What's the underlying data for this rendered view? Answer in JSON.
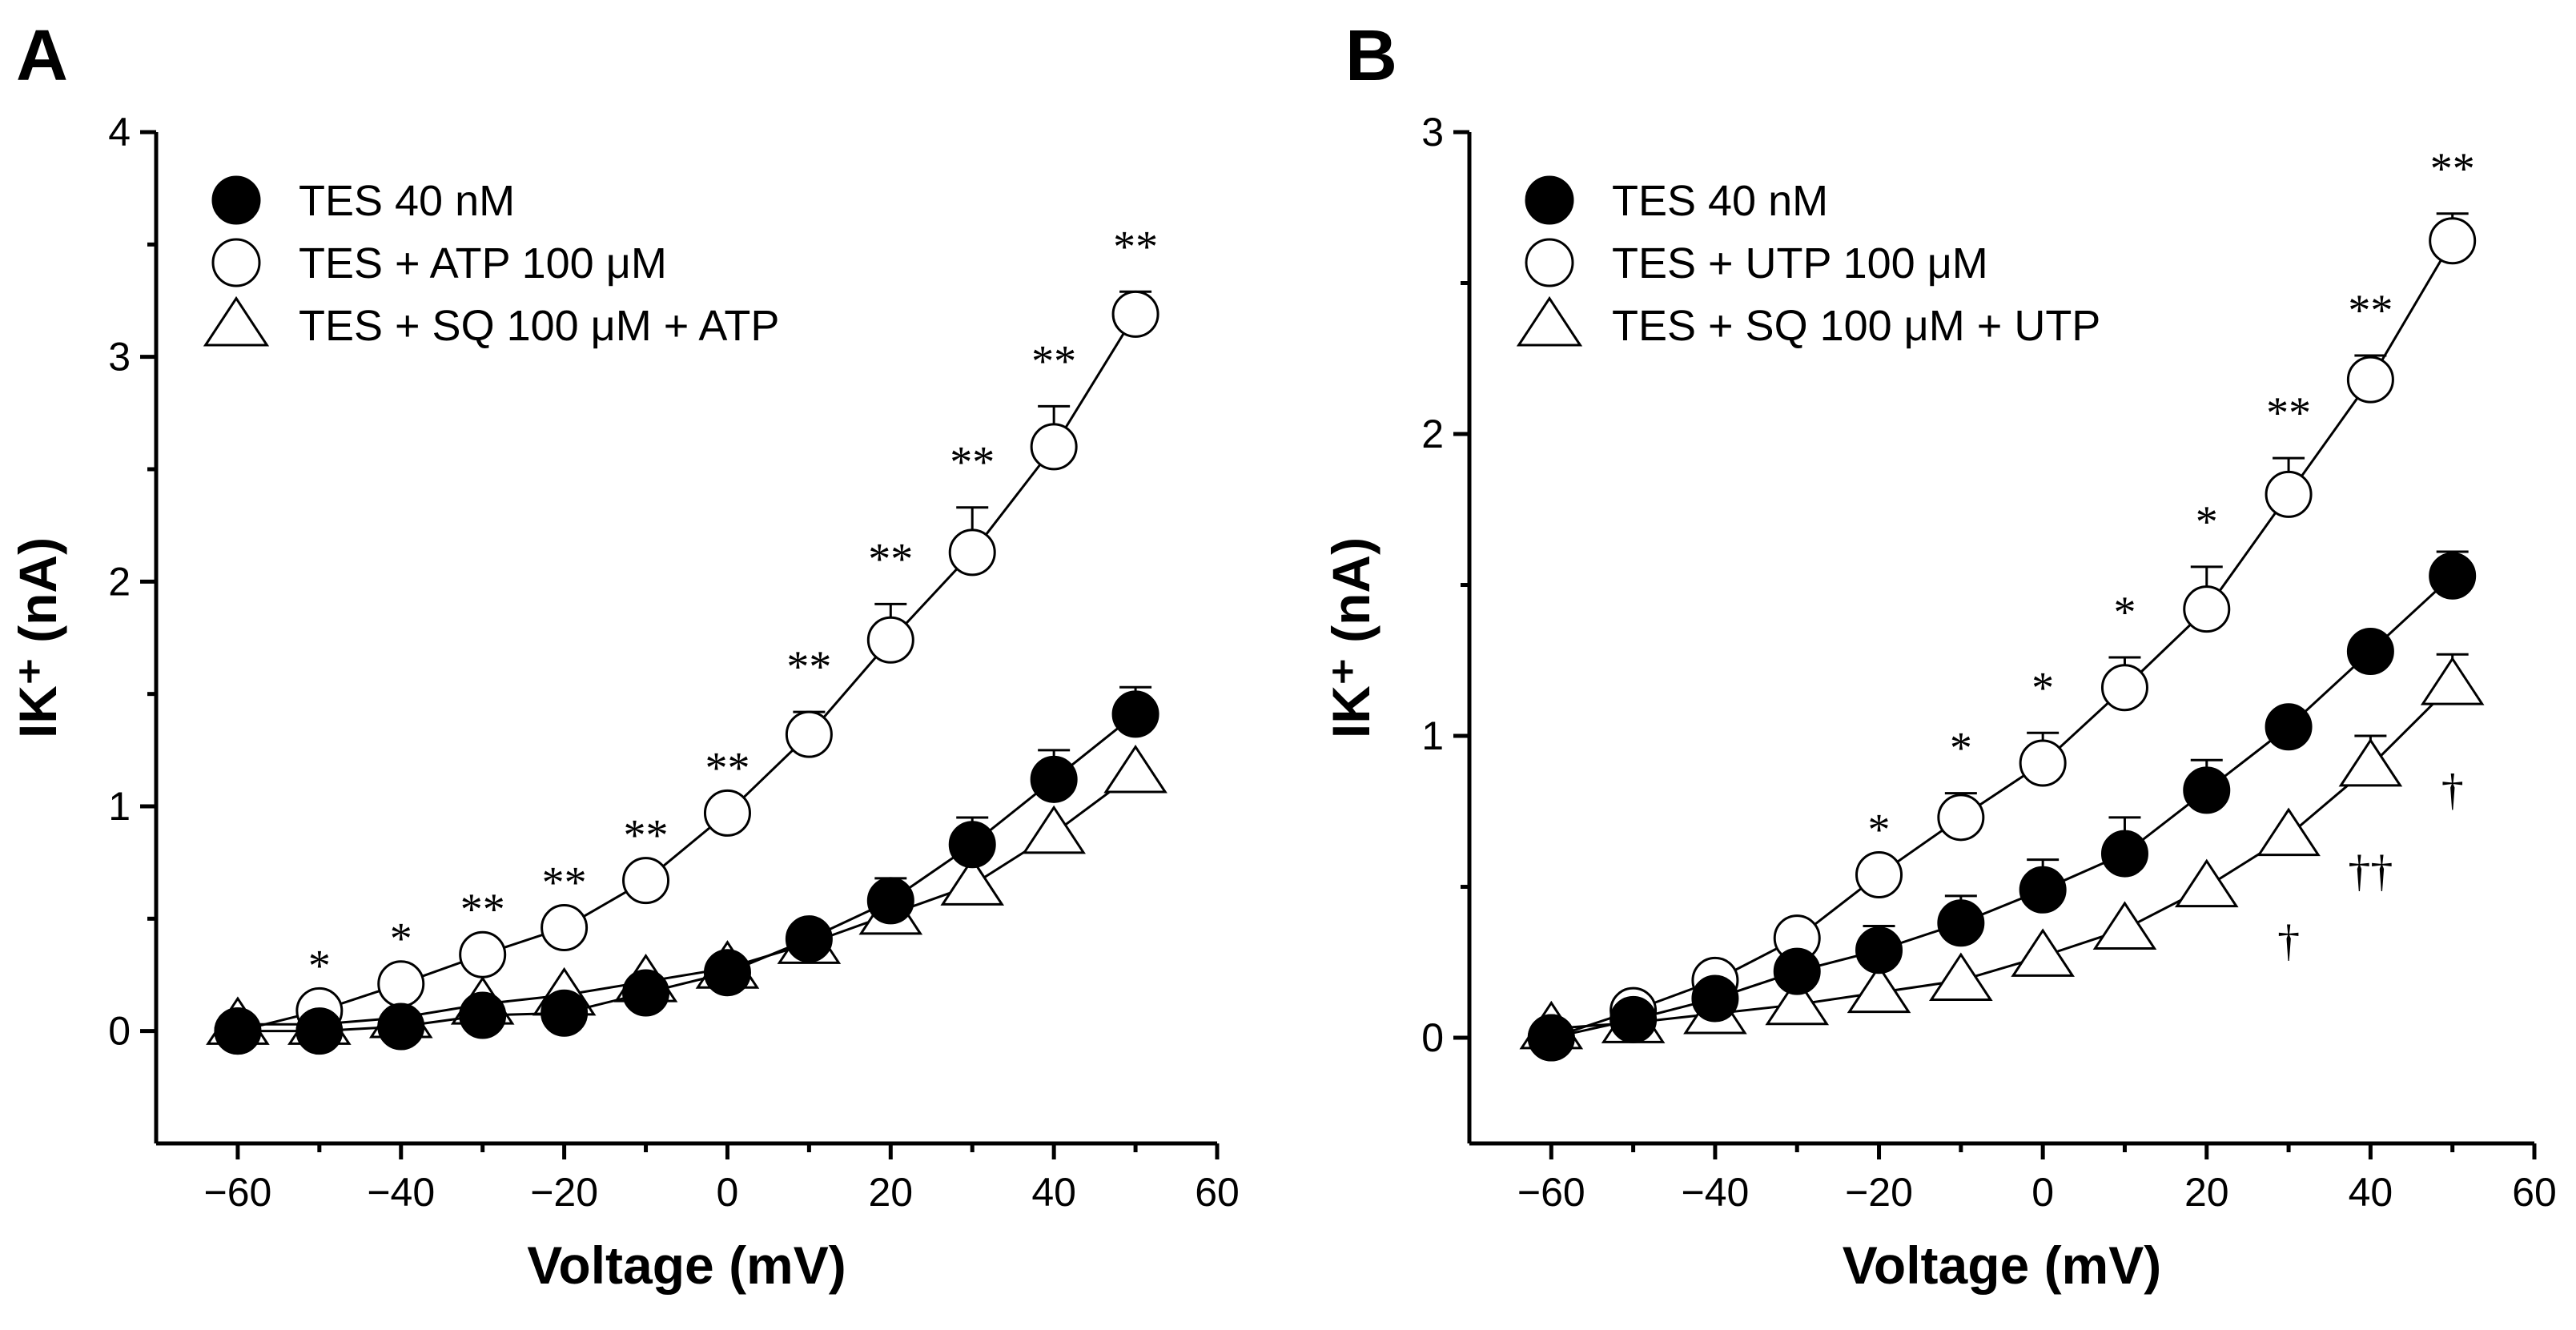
{
  "chart_data": [
    {
      "panel_label": "A",
      "type": "line",
      "xlabel": "Voltage (mV)",
      "ylabel": "IK⁺ (nA)",
      "xlim": [
        -70,
        60
      ],
      "ylim": [
        -0.5,
        4
      ],
      "xticks": [
        -60,
        -40,
        -20,
        0,
        20,
        40,
        60
      ],
      "xtick_labels": [
        "−60",
        "−40",
        "−20",
        "0",
        "20",
        "40",
        "60"
      ],
      "yticks": [
        0,
        1,
        2,
        3,
        4
      ],
      "ytick_labels": [
        "0",
        "1",
        "2",
        "3",
        "4"
      ],
      "legend_position": "top-left",
      "series": [
        {
          "name": "TES 40 nM",
          "marker": "filled-circle",
          "x": [
            -60,
            -50,
            -40,
            -30,
            -20,
            -10,
            0,
            10,
            20,
            30,
            40,
            50
          ],
          "values": [
            0,
            0,
            0.02,
            0.07,
            0.08,
            0.17,
            0.26,
            0.41,
            0.58,
            0.83,
            1.12,
            1.41
          ],
          "errors": [
            0,
            0,
            0,
            0,
            0,
            0,
            0,
            0,
            0.1,
            0.12,
            0.13,
            0.12
          ]
        },
        {
          "name": "TES + ATP 100 μM",
          "marker": "open-circle",
          "x": [
            -60,
            -50,
            -40,
            -30,
            -20,
            -10,
            0,
            10,
            20,
            30,
            40,
            50
          ],
          "values": [
            0,
            0.09,
            0.21,
            0.34,
            0.46,
            0.67,
            0.97,
            1.32,
            1.74,
            2.13,
            2.6,
            3.19
          ],
          "errors": [
            0,
            0,
            0,
            0,
            0,
            0,
            0,
            0.1,
            0.16,
            0.2,
            0.18,
            0.1
          ],
          "annotations": [
            "",
            "*",
            "*",
            "**",
            "**",
            "**",
            "**",
            "**",
            "**",
            "**",
            "**",
            "**"
          ]
        },
        {
          "name": "TES + SQ 100 μM + ATP",
          "marker": "open-triangle",
          "x": [
            -60,
            -50,
            -40,
            -30,
            -20,
            -10,
            0,
            10,
            20,
            30,
            40,
            50
          ],
          "values": [
            0.03,
            0.03,
            0.06,
            0.12,
            0.16,
            0.22,
            0.28,
            0.39,
            0.52,
            0.65,
            0.88,
            1.15
          ],
          "errors": [
            0,
            0,
            0,
            0,
            0,
            0,
            0,
            0,
            0,
            0,
            0,
            0
          ]
        }
      ]
    },
    {
      "panel_label": "B",
      "type": "line",
      "xlabel": "Voltage (mV)",
      "ylabel": "IK⁺ (nA)",
      "xlim": [
        -70,
        60
      ],
      "ylim": [
        -0.35,
        3
      ],
      "xticks": [
        -60,
        -40,
        -20,
        0,
        20,
        40,
        60
      ],
      "xtick_labels": [
        "−60",
        "−40",
        "−20",
        "0",
        "20",
        "40",
        "60"
      ],
      "yticks": [
        0,
        1,
        2,
        3
      ],
      "ytick_labels": [
        "0",
        "1",
        "2",
        "3"
      ],
      "legend_position": "top-left",
      "series": [
        {
          "name": "TES 40 nM",
          "marker": "filled-circle",
          "x": [
            -60,
            -50,
            -40,
            -30,
            -20,
            -10,
            0,
            10,
            20,
            30,
            40,
            50
          ],
          "values": [
            0,
            0.06,
            0.13,
            0.22,
            0.29,
            0.38,
            0.49,
            0.61,
            0.82,
            1.03,
            1.28,
            1.53
          ],
          "errors": [
            0,
            0,
            0,
            0,
            0.08,
            0.09,
            0.1,
            0.12,
            0.1,
            0,
            0,
            0.08
          ]
        },
        {
          "name": "TES + UTP 100 μM",
          "marker": "open-circle",
          "x": [
            -60,
            -50,
            -40,
            -30,
            -20,
            -10,
            0,
            10,
            20,
            30,
            40,
            50
          ],
          "values": [
            0,
            0.09,
            0.19,
            0.33,
            0.54,
            0.73,
            0.91,
            1.16,
            1.42,
            1.8,
            2.18,
            2.64
          ],
          "errors": [
            0,
            0,
            0,
            0,
            0,
            0.08,
            0.1,
            0.1,
            0.14,
            0.12,
            0.08,
            0.09
          ],
          "annotations": [
            "",
            "",
            "",
            "",
            "*",
            "*",
            "*",
            "*",
            "*",
            "**",
            "**",
            "**"
          ]
        },
        {
          "name": "TES + SQ 100 μM + UTP",
          "marker": "open-triangle",
          "x": [
            -60,
            -50,
            -40,
            -30,
            -20,
            -10,
            0,
            10,
            20,
            30,
            40,
            50
          ],
          "values": [
            0.03,
            0.05,
            0.08,
            0.11,
            0.15,
            0.19,
            0.27,
            0.36,
            0.5,
            0.67,
            0.9,
            1.17
          ],
          "errors": [
            0,
            0,
            0,
            0,
            0,
            0,
            0,
            0,
            0,
            0,
            0.1,
            0.1
          ],
          "annotations": [
            "",
            "",
            "",
            "",
            "",
            "",
            "",
            "",
            "",
            "†",
            "††",
            "†"
          ]
        }
      ]
    }
  ]
}
